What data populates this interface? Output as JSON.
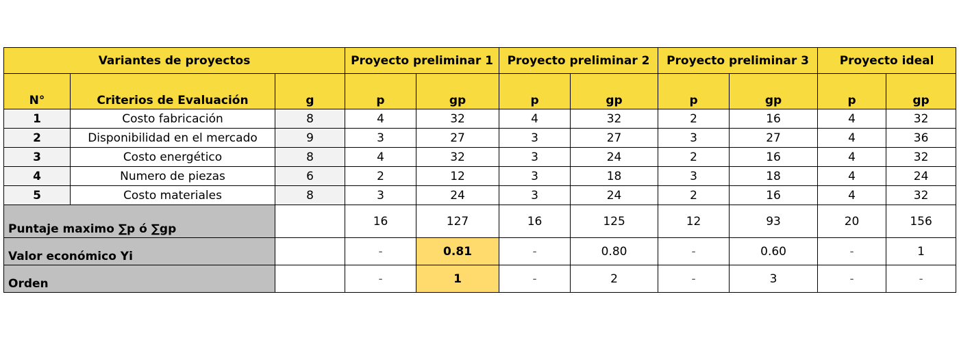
{
  "header": {
    "variants": "Variantes de proyectos",
    "projects": [
      "Proyecto preliminar 1",
      "Proyecto preliminar 2",
      "Proyecto preliminar 3",
      "Proyecto ideal"
    ],
    "num": "N°",
    "criteria": "Criterios de Evaluación",
    "g": "g",
    "p": "p",
    "gp": "gp"
  },
  "rows": [
    {
      "n": "1",
      "criterio": "Costo fabricación",
      "g": "8",
      "vals": [
        "4",
        "32",
        "4",
        "32",
        "2",
        "16",
        "4",
        "32"
      ]
    },
    {
      "n": "2",
      "criterio": "Disponibilidad en el mercado",
      "g": "9",
      "vals": [
        "3",
        "27",
        "3",
        "27",
        "3",
        "27",
        "4",
        "36"
      ]
    },
    {
      "n": "3",
      "criterio": "Costo energético",
      "g": "8",
      "vals": [
        "4",
        "32",
        "3",
        "24",
        "2",
        "16",
        "4",
        "32"
      ]
    },
    {
      "n": "4",
      "criterio": "Numero de piezas",
      "g": "6",
      "vals": [
        "2",
        "12",
        "3",
        "18",
        "3",
        "18",
        "4",
        "24"
      ]
    },
    {
      "n": "5",
      "criterio": "Costo materiales",
      "g": "8",
      "vals": [
        "3",
        "24",
        "3",
        "24",
        "2",
        "16",
        "4",
        "32"
      ]
    }
  ],
  "summary": {
    "puntaje": {
      "label": "Puntaje maximo ∑p ó ∑gp",
      "vals": [
        "16",
        "127",
        "16",
        "125",
        "12",
        "93",
        "20",
        "156"
      ]
    },
    "valor": {
      "label": "Valor económico Yi",
      "vals": [
        "-",
        "0.81",
        "-",
        "0.80",
        "-",
        "0.60",
        "-",
        "1"
      ]
    },
    "orden": {
      "label": "Orden",
      "vals": [
        "-",
        "1",
        "-",
        "2",
        "-",
        "3",
        "-",
        "-"
      ]
    }
  },
  "colors": {
    "header": "#f8dc3f",
    "highlight": "#fedb6c",
    "label_gray": "#c0c0c0"
  }
}
